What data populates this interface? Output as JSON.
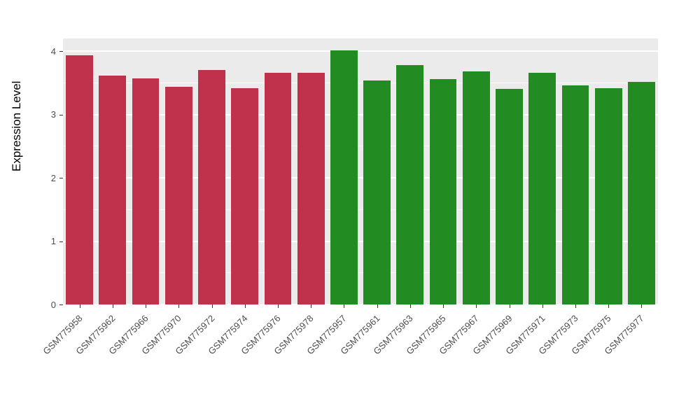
{
  "chart_data": {
    "type": "bar",
    "title": "",
    "xlabel": "",
    "ylabel": "Expression Level",
    "ylim": [
      0,
      4.2
    ],
    "yticks": [
      0,
      1,
      2,
      3,
      4
    ],
    "grid": "on",
    "legend": "none",
    "panel_bg": "#EBEBEB",
    "grid_color": "#FFFFFF",
    "palette": {
      "red": "#C0324B",
      "green": "#228B22"
    },
    "bars": [
      {
        "label": "GSM775958",
        "value": 3.94,
        "group": "red"
      },
      {
        "label": "GSM775962",
        "value": 3.61,
        "group": "red"
      },
      {
        "label": "GSM775966",
        "value": 3.57,
        "group": "red"
      },
      {
        "label": "GSM775970",
        "value": 3.44,
        "group": "red"
      },
      {
        "label": "GSM775972",
        "value": 3.7,
        "group": "red"
      },
      {
        "label": "GSM775974",
        "value": 3.42,
        "group": "red"
      },
      {
        "label": "GSM775976",
        "value": 3.66,
        "group": "red"
      },
      {
        "label": "GSM775978",
        "value": 3.66,
        "group": "red"
      },
      {
        "label": "GSM775957",
        "value": 4.01,
        "group": "green"
      },
      {
        "label": "GSM775961",
        "value": 3.54,
        "group": "green"
      },
      {
        "label": "GSM775963",
        "value": 3.78,
        "group": "green"
      },
      {
        "label": "GSM775965",
        "value": 3.56,
        "group": "green"
      },
      {
        "label": "GSM775967",
        "value": 3.68,
        "group": "green"
      },
      {
        "label": "GSM775969",
        "value": 3.4,
        "group": "green"
      },
      {
        "label": "GSM775971",
        "value": 3.66,
        "group": "green"
      },
      {
        "label": "GSM775973",
        "value": 3.46,
        "group": "green"
      },
      {
        "label": "GSM775975",
        "value": 3.42,
        "group": "green"
      },
      {
        "label": "GSM775977",
        "value": 3.51,
        "group": "green"
      }
    ]
  }
}
